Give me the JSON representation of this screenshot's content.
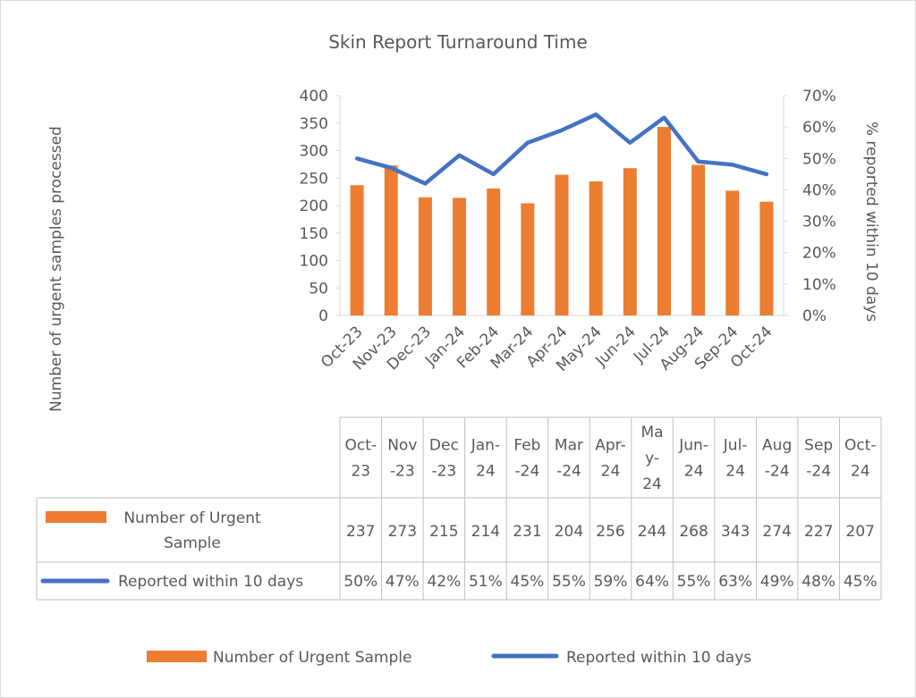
{
  "colors": {
    "bar": "#ED7D31",
    "line": "#4472C4",
    "axis_text": "#595959",
    "grid_line": "#d9d9d9"
  },
  "chart_data": {
    "type": "bar",
    "combo": "bar+line (secondary axis)",
    "title": "Skin Report Turnaround Time",
    "categories": [
      "Oct-23",
      "Nov-23",
      "Dec-23",
      "Jan-24",
      "Feb-24",
      "Mar-24",
      "Apr-24",
      "May-24",
      "Jun-24",
      "Jul-24",
      "Aug-24",
      "Sep-24",
      "Oct-24"
    ],
    "table_categories": [
      [
        "Oct-",
        "23"
      ],
      [
        "Nov",
        "-23"
      ],
      [
        "Dec",
        "-23"
      ],
      [
        "Jan-",
        "24"
      ],
      [
        "Feb",
        "-24"
      ],
      [
        "Mar",
        "-24"
      ],
      [
        "Apr-",
        "24"
      ],
      [
        "Ma",
        "y-",
        "24"
      ],
      [
        "Jun-",
        "24"
      ],
      [
        "Jul-",
        "24"
      ],
      [
        "Aug",
        "-24"
      ],
      [
        "Sep",
        "-24"
      ],
      [
        "Oct-",
        "24"
      ]
    ],
    "series": [
      {
        "name": "Number of Urgent Sample",
        "type": "bar",
        "axis": "primary",
        "table_label": [
          "Number of Urgent",
          "Sample"
        ],
        "values": [
          237,
          273,
          215,
          214,
          231,
          204,
          256,
          244,
          268,
          343,
          274,
          227,
          207
        ]
      },
      {
        "name": "Reported within 10 days",
        "type": "line",
        "axis": "secondary",
        "table_label": [
          "Reported within 10 days"
        ],
        "values": [
          0.5,
          0.47,
          0.42,
          0.51,
          0.45,
          0.55,
          0.59,
          0.64,
          0.55,
          0.63,
          0.49,
          0.48,
          0.45
        ],
        "display_values": [
          "50%",
          "47%",
          "42%",
          "51%",
          "45%",
          "55%",
          "59%",
          "64%",
          "55%",
          "63%",
          "49%",
          "48%",
          "45%"
        ]
      }
    ],
    "ylabel": "Number of urgent samples processed",
    "y2label": "% reported within 10 days",
    "ylim": [
      0,
      400
    ],
    "y_ticks": [
      "400",
      "350",
      "300",
      "250",
      "200",
      "150",
      "100",
      "50",
      "0"
    ],
    "y2lim": [
      0,
      0.7
    ],
    "y2_ticks": [
      "70%",
      "60%",
      "50%",
      "40%",
      "30%",
      "20%",
      "10%",
      "0%"
    ],
    "grid": false,
    "legend": "bottom",
    "data_table": true
  }
}
